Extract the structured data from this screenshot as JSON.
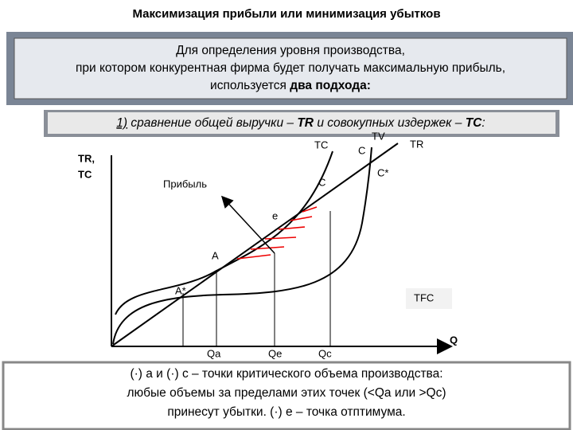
{
  "header": {
    "title": "Максимизация прибыли или минимизация убытков"
  },
  "intro": {
    "line1": "Для определения уровня производства,",
    "line2": "при котором конкурентная фирма будет получать максимальную прибыль,",
    "line3_plain": "используется ",
    "line3_bold": "два подхода:"
  },
  "method": {
    "number": "1)",
    "text1": " сравнение общей выручки – ",
    "tr": "TR",
    "text2": " и совокупных издержек – ",
    "tc": "TC",
    "end": ":"
  },
  "graph": {
    "y_axis_1": "TR,",
    "y_axis_2": "TC",
    "x_axis": "Q",
    "tc": "TC",
    "c_top": "C",
    "tv": "TV",
    "tr": "TR",
    "c_star": "C*",
    "profit": "Прибыль",
    "c": "C",
    "e": "e",
    "a": "A",
    "a_star": "A*",
    "tfc": "TFC",
    "qa": "Qa",
    "qe": "Qe",
    "qc": "Qc"
  },
  "note": {
    "line1": "(·) a и (·) c – точки критического объема производства:",
    "line2": "любые объемы за пределами этих точек (<Qa или >Qc)",
    "line3": "принесут убытки. (·) e – точка отптимума."
  }
}
